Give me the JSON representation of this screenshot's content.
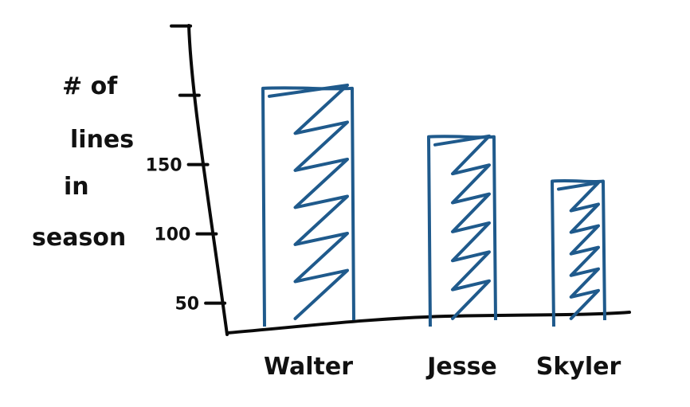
{
  "chart_data": {
    "type": "bar",
    "title": "",
    "ylabel": "# of lines in season",
    "ylabel_lines": [
      "# of",
      "lines",
      "in",
      "season"
    ],
    "xlabel": "",
    "categories": [
      "Walter",
      "Jesse",
      "Skyler"
    ],
    "values": [
      205,
      170,
      138
    ],
    "ylim": [
      40,
      250
    ],
    "yticks": [
      50,
      100,
      150
    ],
    "ytick_labels": [
      "50",
      "100",
      "150"
    ],
    "bar_color": "#1f5a8c",
    "axis_color": "#0a0a0a",
    "grid": false,
    "legend": "none"
  }
}
